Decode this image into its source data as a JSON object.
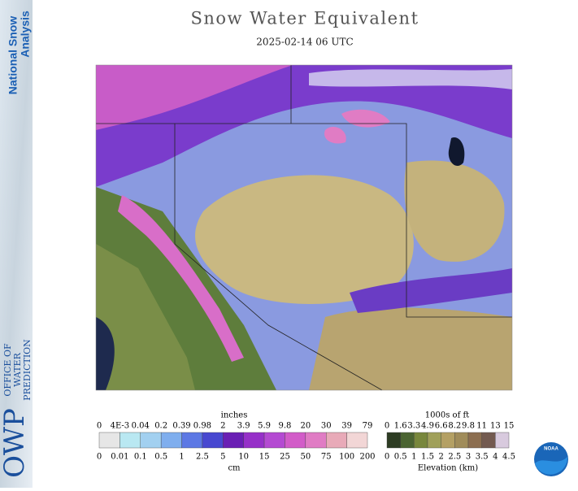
{
  "header": {
    "title": "Snow Water Equivalent",
    "subtitle": "2025-02-14 06 UTC"
  },
  "sidebar": {
    "product_lines": [
      "National Snow",
      "Analysis"
    ],
    "office_acronym": "OWP",
    "office_lines": [
      "OFFICE OF",
      "WATER",
      "PREDICTION"
    ]
  },
  "swe_legend": {
    "top_unit": "inches",
    "top_labels": [
      "0",
      "4E-3",
      "0.04",
      "0.2",
      "0.39",
      "0.98",
      "2",
      "3.9",
      "5.9",
      "9.8",
      "20",
      "30",
      "39",
      "79"
    ],
    "bottom_labels": [
      "0",
      "0.01",
      "0.1",
      "0.5",
      "1",
      "2.5",
      "5",
      "10",
      "15",
      "25",
      "50",
      "75",
      "100",
      "200"
    ],
    "bottom_unit": "cm",
    "colors": [
      "#e6e6e6",
      "#b9e8f2",
      "#a2d0f0",
      "#7faeee",
      "#5c78e4",
      "#4848d0",
      "#6a1fb4",
      "#9630c8",
      "#b44ad2",
      "#d25cc8",
      "#e07cc4",
      "#e8aab8",
      "#f2d6d6"
    ]
  },
  "elev_legend": {
    "top_unit": "1000s of ft",
    "top_labels": [
      "0",
      "1.6",
      "3.3",
      "4.9",
      "6.6",
      "8.2",
      "9.8",
      "11",
      "13",
      "15"
    ],
    "bottom_labels": [
      "0",
      "0.5",
      "1",
      "1.5",
      "2",
      "2.5",
      "3",
      "3.5",
      "4",
      "4.5"
    ],
    "bottom_unit": "Elevation (km)",
    "colors": [
      "#2d3c23",
      "#4b6432",
      "#78873c",
      "#a0a05a",
      "#b4a064",
      "#a08c5a",
      "#8c6e50",
      "#735a50",
      "#d8cade"
    ]
  },
  "logo": "NOAA"
}
